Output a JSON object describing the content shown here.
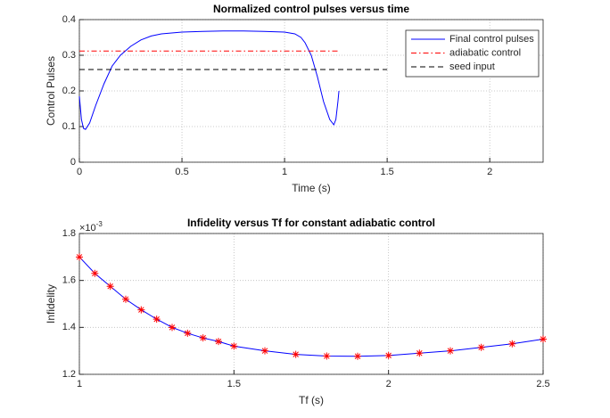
{
  "chart_data": [
    {
      "type": "line",
      "title": "Normalized control pulses versus time",
      "xlabel": "Time (s)",
      "ylabel": "Control Pulses",
      "xlim": [
        0,
        2.26
      ],
      "ylim": [
        0,
        0.4
      ],
      "xticks": [
        0,
        0.5,
        1,
        1.5,
        2
      ],
      "yticks": [
        0,
        0.1,
        0.2,
        0.3,
        0.4
      ],
      "grid": true,
      "legend": "top-right",
      "series": [
        {
          "name": "Final control pulses",
          "color": "#0000ff",
          "dash": "solid",
          "x": [
            0,
            0.01,
            0.02,
            0.03,
            0.05,
            0.08,
            0.12,
            0.16,
            0.2,
            0.25,
            0.3,
            0.35,
            0.4,
            0.5,
            0.6,
            0.7,
            0.8,
            0.9,
            1.0,
            1.05,
            1.08,
            1.1,
            1.13,
            1.16,
            1.19,
            1.22,
            1.24,
            1.25,
            1.26,
            1.265
          ],
          "values": [
            0.185,
            0.12,
            0.095,
            0.092,
            0.11,
            0.16,
            0.22,
            0.27,
            0.3,
            0.325,
            0.343,
            0.354,
            0.36,
            0.365,
            0.367,
            0.368,
            0.368,
            0.367,
            0.365,
            0.36,
            0.35,
            0.335,
            0.3,
            0.24,
            0.17,
            0.12,
            0.105,
            0.12,
            0.17,
            0.2
          ]
        },
        {
          "name": "adiabatic control",
          "color": "#ff0000",
          "dash": "dashdot",
          "x": [
            0,
            1.26
          ],
          "values": [
            0.312,
            0.312
          ]
        },
        {
          "name": "seed input",
          "color": "#000000",
          "dash": "dashed",
          "x": [
            0,
            1.5
          ],
          "values": [
            0.26,
            0.26
          ]
        }
      ]
    },
    {
      "type": "line",
      "title": "Infidelity versus Tf for constant adiabatic control",
      "xlabel": "Tf (s)",
      "ylabel": "Infidelity",
      "multiplier_base": "×10",
      "multiplier_exponent": "-3",
      "xlim": [
        1,
        2.5
      ],
      "ylim": [
        1.2,
        1.8
      ],
      "xticks": [
        1,
        1.5,
        2,
        2.5
      ],
      "yticks": [
        1.2,
        1.4,
        1.6,
        1.8
      ],
      "grid": true,
      "series": [
        {
          "color": "#0000ff",
          "marker": "star",
          "marker_color": "#ff0000",
          "dash": "solid",
          "x": [
            1,
            1.05,
            1.1,
            1.15,
            1.2,
            1.25,
            1.3,
            1.35,
            1.4,
            1.45,
            1.5,
            1.6,
            1.7,
            1.8,
            1.9,
            2.0,
            2.1,
            2.2,
            2.3,
            2.4,
            2.5
          ],
          "values": [
            1.7,
            1.63,
            1.575,
            1.52,
            1.475,
            1.435,
            1.4,
            1.375,
            1.355,
            1.34,
            1.32,
            1.3,
            1.285,
            1.278,
            1.277,
            1.28,
            1.29,
            1.3,
            1.315,
            1.33,
            1.35
          ]
        }
      ]
    }
  ]
}
